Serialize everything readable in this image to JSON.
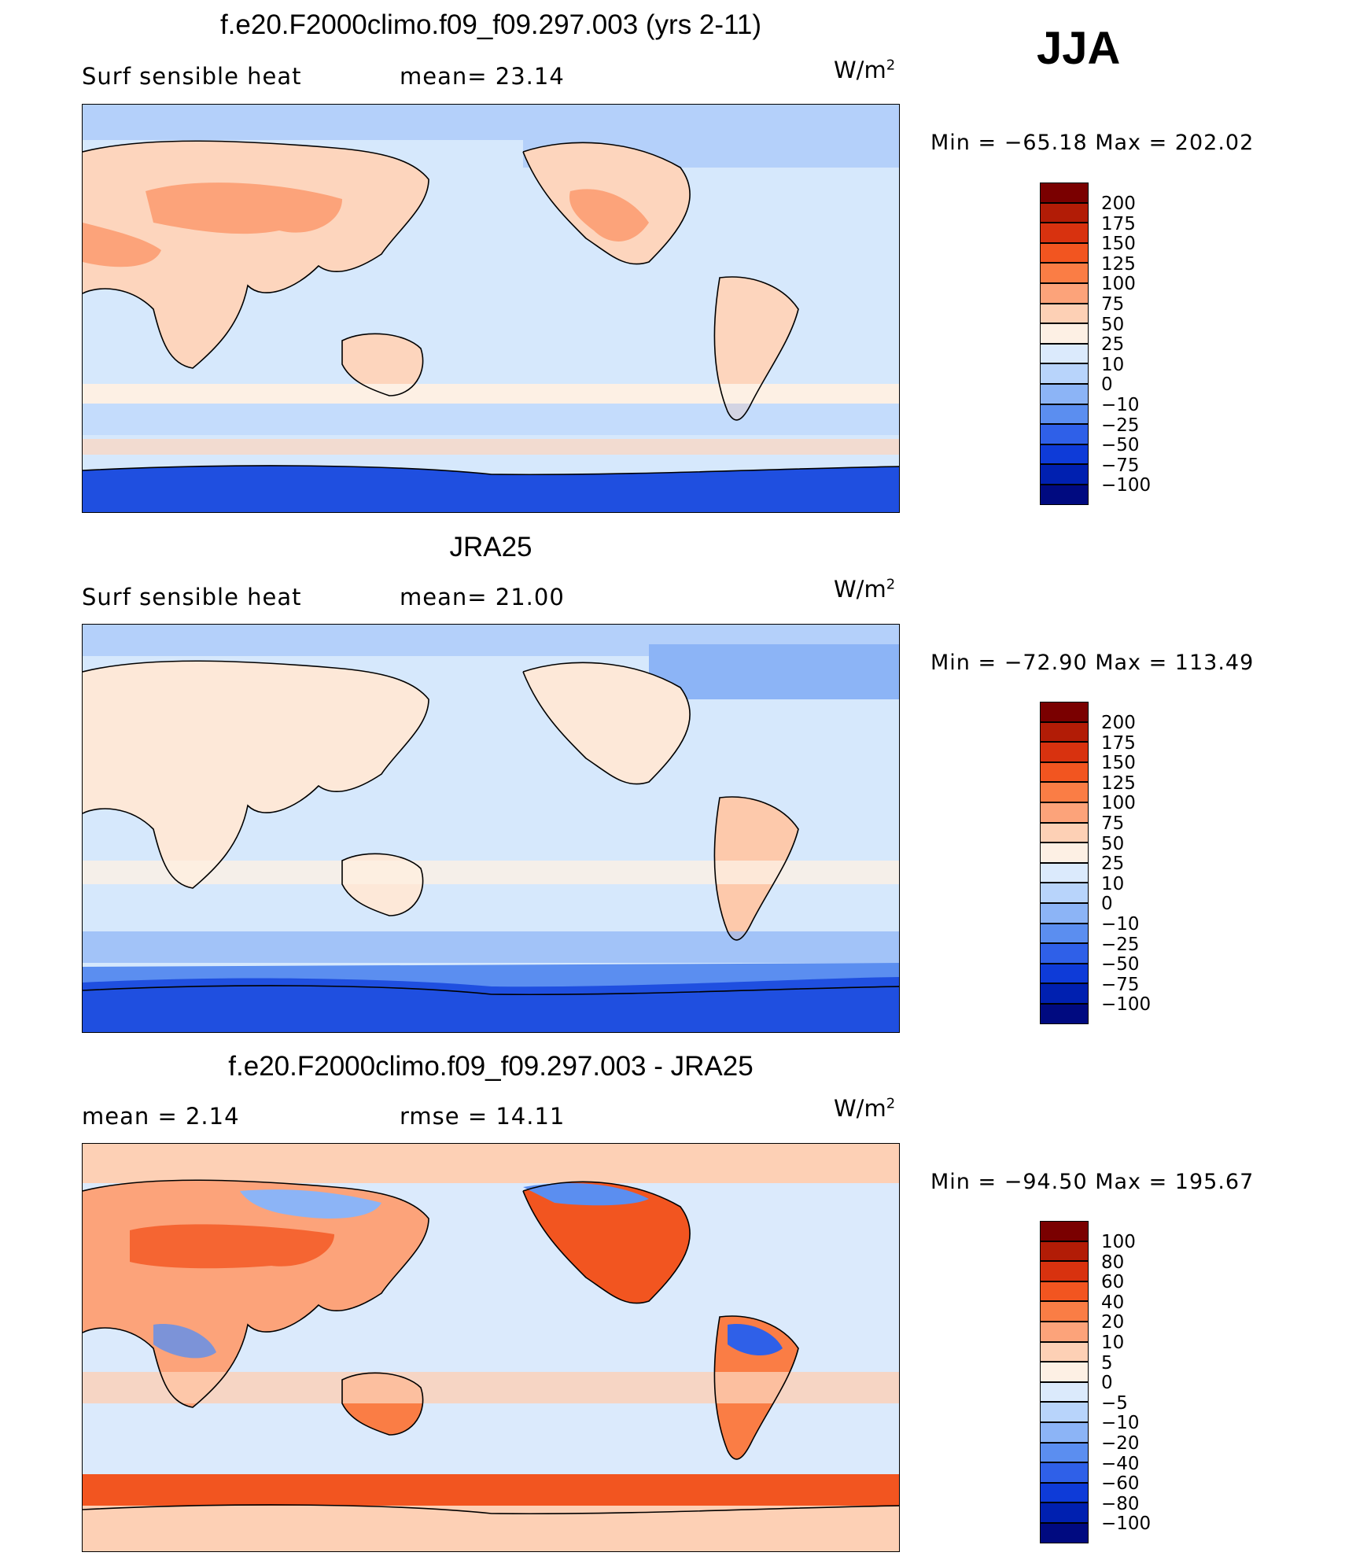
{
  "season": "JJA",
  "units_base": "W/m",
  "units_exp": "2",
  "panels": [
    {
      "title": "f.e20.F2000climo.f09_f09.297.003 (yrs 2-11)",
      "left_text": "Surf  sensible  heat",
      "right_text": "mean=   23.14",
      "min_max": "Min  =  −65.18  Max  =  202.02",
      "colorbar_labels": [
        "200",
        "175",
        "150",
        "125",
        "100",
        "75",
        "50",
        "25",
        "10",
        "0",
        "−10",
        "−25",
        "−50",
        "−75",
        "−100"
      ],
      "colorbar_colors": [
        "#7a0000",
        "#b21c06",
        "#d8320f",
        "#f25520",
        "#fa7d45",
        "#fca37a",
        "#fdd0b5",
        "#fdf0e4",
        "#dbeafc",
        "#b8d4fb",
        "#8cb4f6",
        "#5b8ef0",
        "#2f60e8",
        "#0e3bd8",
        "#0020b0",
        "#000a80"
      ]
    },
    {
      "title": "JRA25",
      "left_text": "Surf  sensible  heat",
      "right_text": "mean=   21.00",
      "min_max": "Min  =  −72.90  Max  =  113.49",
      "colorbar_labels": [
        "200",
        "175",
        "150",
        "125",
        "100",
        "75",
        "50",
        "25",
        "10",
        "0",
        "−10",
        "−25",
        "−50",
        "−75",
        "−100"
      ],
      "colorbar_colors": [
        "#7a0000",
        "#b21c06",
        "#d8320f",
        "#f25520",
        "#fa7d45",
        "#fca37a",
        "#fdd0b5",
        "#fdf0e4",
        "#dbeafc",
        "#b8d4fb",
        "#8cb4f6",
        "#5b8ef0",
        "#2f60e8",
        "#0e3bd8",
        "#0020b0",
        "#000a80"
      ]
    },
    {
      "title": "f.e20.F2000climo.f09_f09.297.003 - JRA25",
      "left_text": "mean  =     2.14",
      "right_text": "rmse  =    14.11",
      "min_max": "Min  =  −94.50  Max  =  195.67",
      "colorbar_labels": [
        "100",
        "80",
        "60",
        "40",
        "20",
        "10",
        "5",
        "0",
        "−5",
        "−10",
        "−20",
        "−40",
        "−60",
        "−80",
        "−100"
      ],
      "colorbar_colors": [
        "#7a0000",
        "#b21c06",
        "#d8320f",
        "#f25520",
        "#fa7d45",
        "#fca37a",
        "#fdd0b5",
        "#fdf0e4",
        "#dbeafc",
        "#b8d4fb",
        "#8cb4f6",
        "#5b8ef0",
        "#2f60e8",
        "#0e3bd8",
        "#0020b0",
        "#000a80"
      ]
    }
  ]
}
